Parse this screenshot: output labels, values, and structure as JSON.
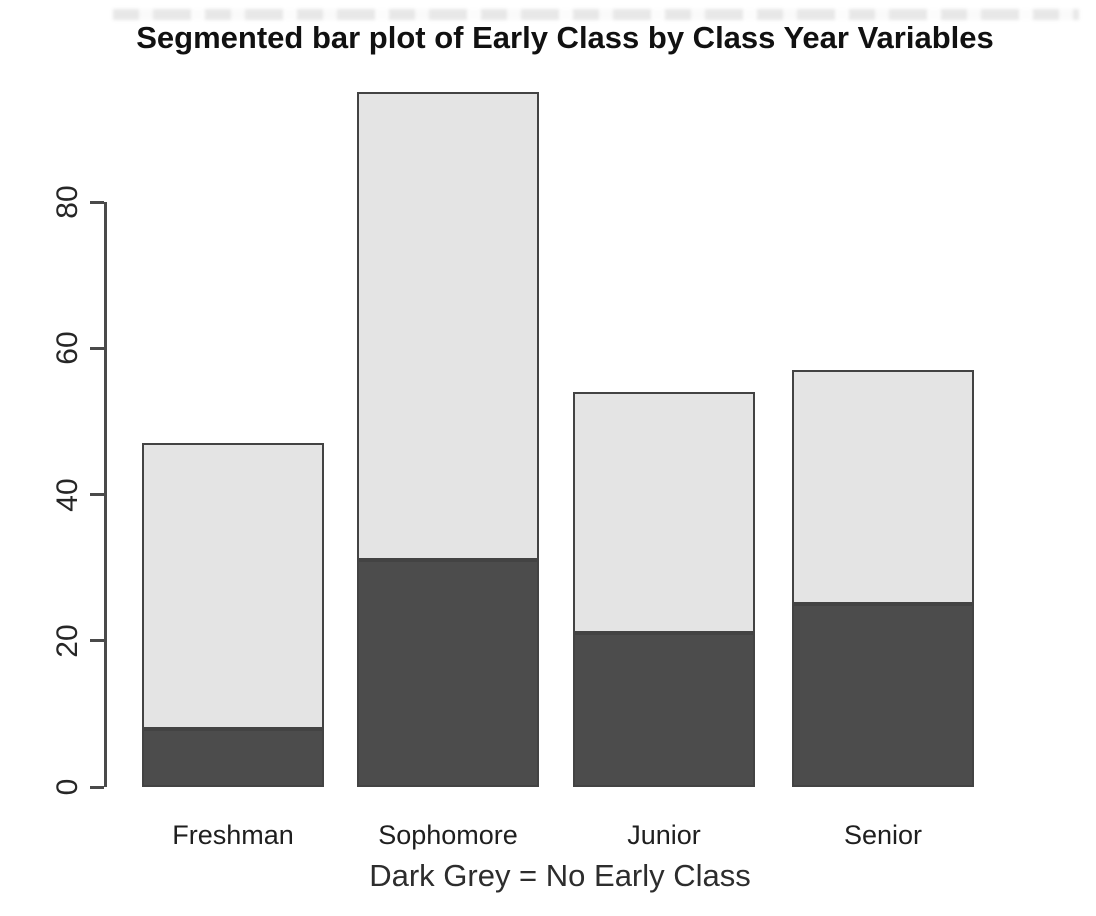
{
  "chart_data": {
    "type": "bar",
    "stacked": true,
    "title": "Segmented bar plot of Early Class by Class Year Variables",
    "xlabel": "Dark Grey = No Early Class",
    "ylabel": "",
    "categories": [
      "Freshman",
      "Sophomore",
      "Junior",
      "Senior"
    ],
    "series": [
      {
        "name": "No Early Class",
        "legend": "Dark Grey",
        "color": "#4c4c4c",
        "values": [
          8,
          31,
          21,
          25
        ]
      },
      {
        "name": "Early Class",
        "legend": "Light Grey",
        "color": "#e4e4e4",
        "values": [
          39,
          64,
          33,
          32
        ]
      }
    ],
    "stack_totals": [
      47,
      95,
      54,
      57
    ],
    "yticks": [
      0,
      20,
      40,
      60,
      80
    ],
    "ylim": [
      0,
      96
    ],
    "grid": false,
    "legend_position": "none"
  },
  "colors": {
    "dark_segment_fill": "#4c4c4c",
    "light_segment_fill": "#e4e4e4",
    "bar_border": "#434343",
    "axis": "#4a4a4a",
    "title_text": "#111111",
    "label_text": "#1f1f1f",
    "background": "#ffffff"
  }
}
